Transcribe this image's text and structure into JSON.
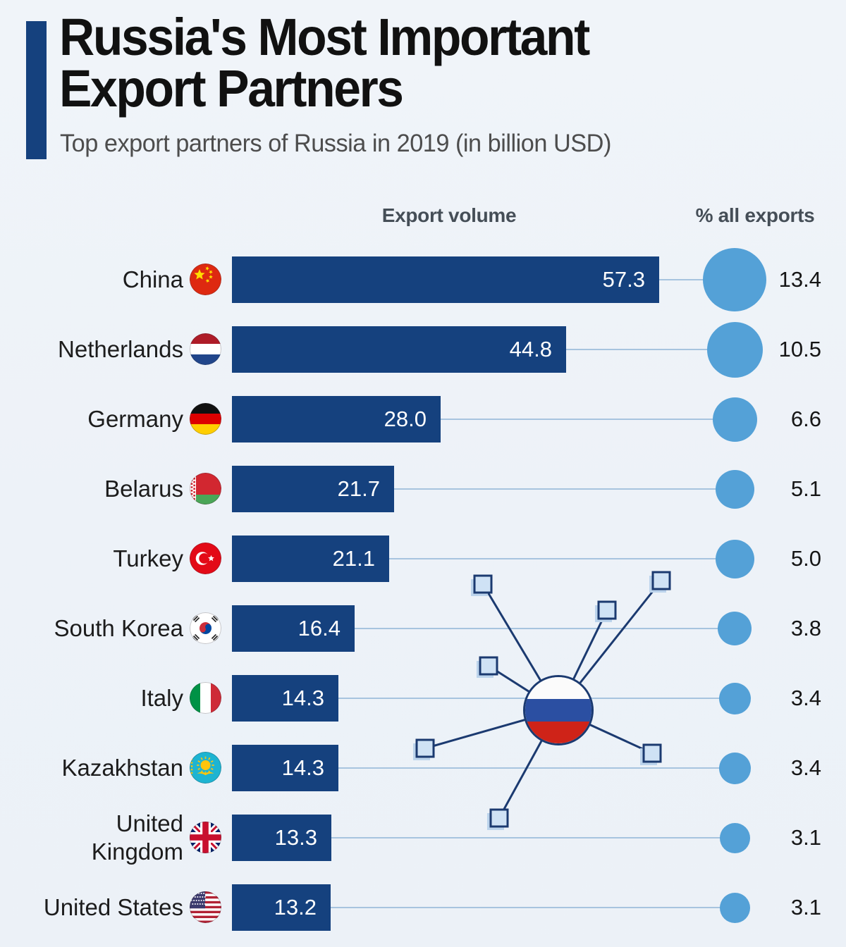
{
  "header": {
    "title_line1": "Russia's Most Important",
    "title_line2": "Export Partners",
    "subtitle": "Top export partners of Russia in 2019 (in billion USD)"
  },
  "columns": {
    "export_volume": "Export volume",
    "pct_all_exports": "% all exports"
  },
  "rows": [
    {
      "country": "China",
      "flag": "china",
      "value": "57.3",
      "pct": "13.4"
    },
    {
      "country": "Netherlands",
      "flag": "netherlands",
      "value": "44.8",
      "pct": "10.5"
    },
    {
      "country": "Germany",
      "flag": "germany",
      "value": "28.0",
      "pct": "6.6"
    },
    {
      "country": "Belarus",
      "flag": "belarus",
      "value": "21.7",
      "pct": "5.1"
    },
    {
      "country": "Turkey",
      "flag": "turkey",
      "value": "21.1",
      "pct": "5.0"
    },
    {
      "country": "South Korea",
      "flag": "south-korea",
      "value": "16.4",
      "pct": "3.8"
    },
    {
      "country": "Italy",
      "flag": "italy",
      "value": "14.3",
      "pct": "3.4"
    },
    {
      "country": "Kazakhstan",
      "flag": "kazakhstan",
      "value": "14.3",
      "pct": "3.4"
    },
    {
      "country": "United Kingdom",
      "flag": "united-kingdom",
      "value": "13.3",
      "pct": "3.1"
    },
    {
      "country": "United States",
      "flag": "united-states",
      "value": "13.2",
      "pct": "3.1"
    }
  ],
  "center_icon": "russia-flag-hub",
  "colors": {
    "bar": "#15417e",
    "accent_bar": "#15417e",
    "bubble": "#54a1d7",
    "connector_line": "#a7c4df",
    "hub_line": "#1b3a70",
    "node_square_fill": "#cfe2f5",
    "background": "#edf2f8",
    "title_text": "#111111",
    "subtitle_text": "#4d4d4d",
    "bar_value_text": "#ffffff"
  },
  "chart_data": {
    "type": "bar",
    "orientation": "horizontal",
    "title": "Russia's Most Important Export Partners",
    "subtitle": "Top export partners of Russia in 2019 (in billion USD)",
    "categories": [
      "China",
      "Netherlands",
      "Germany",
      "Belarus",
      "Turkey",
      "South Korea",
      "Italy",
      "Kazakhstan",
      "United Kingdom",
      "United States"
    ],
    "series": [
      {
        "name": "Export volume",
        "unit": "billion USD",
        "values": [
          57.3,
          44.8,
          28.0,
          21.7,
          21.1,
          16.4,
          14.3,
          14.3,
          13.3,
          13.2
        ]
      },
      {
        "name": "% all exports",
        "unit": "%",
        "values": [
          13.4,
          10.5,
          6.6,
          5.1,
          5.0,
          3.8,
          3.4,
          3.4,
          3.1,
          3.1
        ]
      }
    ],
    "value_labels": "inside-end of bars; % shown as proportional bubbles",
    "legend_position": "column headers",
    "grid": false
  }
}
